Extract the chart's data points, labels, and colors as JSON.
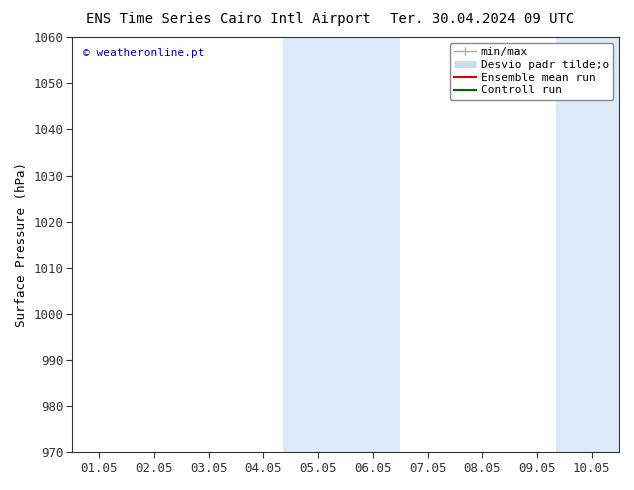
{
  "title_left": "ENS Time Series Cairo Intl Airport",
  "title_right": "Ter. 30.04.2024 09 UTC",
  "ylabel": "Surface Pressure (hPa)",
  "ylim": [
    970,
    1060
  ],
  "yticks": [
    970,
    980,
    990,
    1000,
    1010,
    1020,
    1030,
    1040,
    1050,
    1060
  ],
  "xtick_labels": [
    "01.05",
    "02.05",
    "03.05",
    "04.05",
    "05.05",
    "06.05",
    "07.05",
    "08.05",
    "09.05",
    "10.05"
  ],
  "xtick_positions": [
    0,
    1,
    2,
    3,
    4,
    5,
    6,
    7,
    8,
    9
  ],
  "xlim": [
    -0.5,
    9.5
  ],
  "shaded_regions": [
    {
      "xmin": 3.35,
      "xmax": 5.5
    },
    {
      "xmin": 8.35,
      "xmax": 9.5
    }
  ],
  "shade_color": "#daeaf8",
  "watermark_text": "© weatheronline.pt",
  "watermark_color": "#0000bb",
  "bg_color": "#ffffff",
  "title_fontsize": 10,
  "axis_label_fontsize": 9,
  "tick_fontsize": 9,
  "legend_fontsize": 8,
  "spine_color": "#333333",
  "legend_line_gray": "#aaaaaa",
  "legend_line_lightblue": "#c8ddf0",
  "legend_line_red": "#dd0000",
  "legend_line_green": "#006600"
}
